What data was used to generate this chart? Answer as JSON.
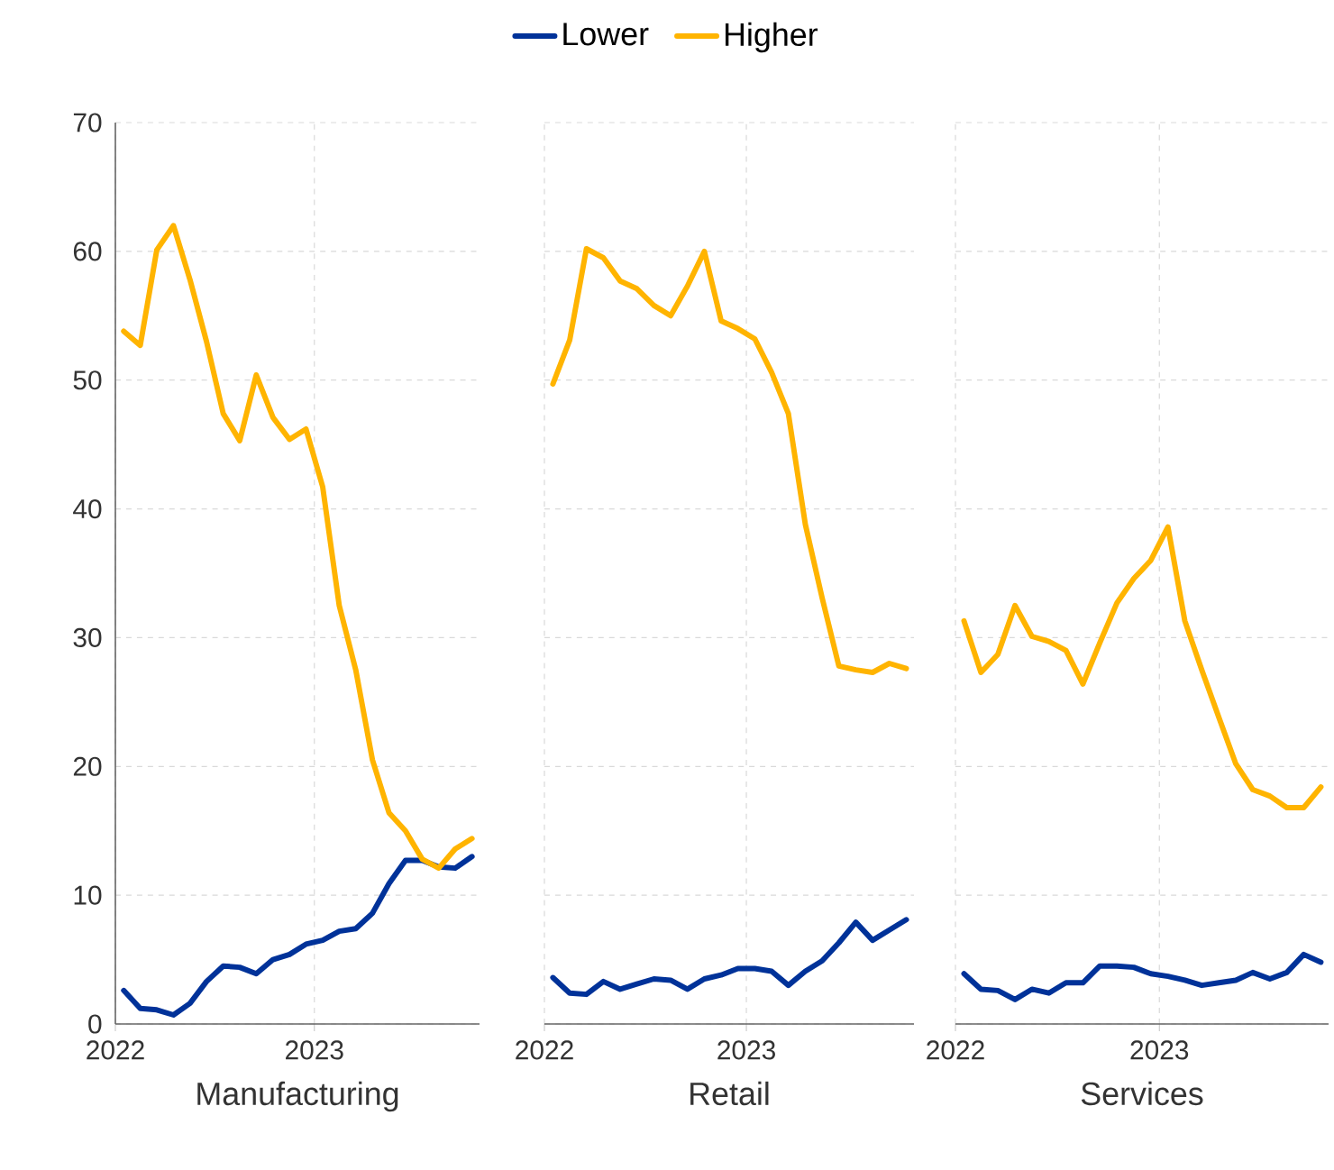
{
  "chart_data": [
    {
      "type": "line",
      "xlabel": "Manufacturing",
      "legend": "top",
      "grid": true,
      "line_style": "solid",
      "marker": "none",
      "x": [
        2022.042,
        2022.125,
        2022.208,
        2022.292,
        2022.375,
        2022.458,
        2022.542,
        2022.625,
        2022.708,
        2022.792,
        2022.875,
        2022.958,
        2023.042,
        2023.125,
        2023.208,
        2023.292,
        2023.375,
        2023.458,
        2023.542,
        2023.625,
        2023.708,
        2023.792
      ],
      "xlim": [
        2022,
        2023.83
      ],
      "xticks": [
        2022,
        2023
      ],
      "ylim": [
        0,
        70
      ],
      "yticks": [
        0,
        10,
        20,
        30,
        40,
        50,
        60,
        70
      ],
      "series": [
        {
          "name": "Lower",
          "color": "#003299",
          "values": [
            2.6,
            1.2,
            1.1,
            0.7,
            1.6,
            3.3,
            4.5,
            4.4,
            3.9,
            5.0,
            5.4,
            6.2,
            6.5,
            7.2,
            7.4,
            8.6,
            10.9,
            12.7,
            12.7,
            12.2,
            12.1,
            13.0
          ]
        },
        {
          "name": "Higher",
          "color": "#ffb400",
          "values": [
            53.8,
            52.7,
            60.1,
            62.0,
            57.8,
            53.0,
            47.4,
            45.3,
            50.4,
            47.1,
            45.4,
            46.2,
            41.7,
            32.5,
            27.5,
            20.5,
            16.4,
            15.0,
            12.8,
            12.1,
            13.6,
            14.4
          ]
        }
      ]
    },
    {
      "type": "line",
      "xlabel": "Retail",
      "grid": true,
      "line_style": "solid",
      "marker": "none",
      "tick_labels": "x",
      "x": [
        2022.042,
        2022.125,
        2022.208,
        2022.292,
        2022.375,
        2022.458,
        2022.542,
        2022.625,
        2022.708,
        2022.792,
        2022.875,
        2022.958,
        2023.042,
        2023.125,
        2023.208,
        2023.292,
        2023.375,
        2023.458,
        2023.542,
        2023.625,
        2023.708,
        2023.792
      ],
      "xlim": [
        2022,
        2023.83
      ],
      "xticks": [
        2022,
        2023
      ],
      "ylim": [
        0,
        70
      ],
      "yticks": [
        0,
        10,
        20,
        30,
        40,
        50,
        60,
        70
      ],
      "series": [
        {
          "color": "#003299",
          "values": [
            3.6,
            2.4,
            2.3,
            3.3,
            2.7,
            3.1,
            3.5,
            3.4,
            2.7,
            3.5,
            3.8,
            4.3,
            4.3,
            4.1,
            3.0,
            4.1,
            4.9,
            6.3,
            7.9,
            6.5,
            7.3,
            8.1
          ]
        },
        {
          "color": "#ffb400",
          "values": [
            49.7,
            53.1,
            60.2,
            59.5,
            57.7,
            57.1,
            55.8,
            55.0,
            57.3,
            60.0,
            54.6,
            54.0,
            53.2,
            50.6,
            47.4,
            38.8,
            33.1,
            27.8,
            27.5,
            27.3,
            28.0,
            27.6
          ]
        }
      ]
    },
    {
      "type": "line",
      "xlabel": "Services",
      "grid": true,
      "line_style": "solid",
      "marker": "none",
      "tick_labels": "x",
      "x": [
        2022.042,
        2022.125,
        2022.208,
        2022.292,
        2022.375,
        2022.458,
        2022.542,
        2022.625,
        2022.708,
        2022.792,
        2022.875,
        2022.958,
        2023.042,
        2023.125,
        2023.208,
        2023.292,
        2023.375,
        2023.458,
        2023.542,
        2023.625,
        2023.708,
        2023.792
      ],
      "xlim": [
        2022,
        2023.83
      ],
      "xticks": [
        2022,
        2023
      ],
      "ylim": [
        0,
        70
      ],
      "yticks": [
        0,
        10,
        20,
        30,
        40,
        50,
        60,
        70
      ],
      "series": [
        {
          "color": "#003299",
          "values": [
            3.9,
            2.7,
            2.6,
            1.9,
            2.7,
            2.4,
            3.2,
            3.2,
            4.5,
            4.5,
            4.4,
            3.9,
            3.7,
            3.4,
            3.0,
            3.2,
            3.4,
            4.0,
            3.5,
            4.0,
            5.4,
            4.8
          ]
        },
        {
          "color": "#ffb400",
          "values": [
            31.3,
            27.3,
            28.7,
            32.5,
            30.1,
            29.7,
            29.0,
            26.4,
            29.6,
            32.7,
            34.6,
            36.0,
            38.6,
            31.3,
            27.5,
            23.8,
            20.2,
            18.2,
            17.7,
            16.8,
            16.8,
            18.4
          ]
        }
      ]
    }
  ]
}
